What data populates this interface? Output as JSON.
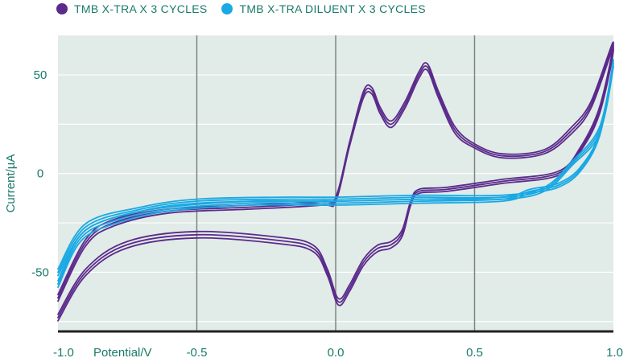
{
  "chart_data": {
    "type": "line",
    "title": "",
    "xlabel": "Potential/V",
    "ylabel": "Current/µA",
    "xlim": [
      -1.0,
      1.0
    ],
    "ylim": [
      -80,
      70
    ],
    "xticks": [
      -1.0,
      -0.5,
      0.0,
      0.5,
      1.0
    ],
    "xtick_labels": [
      "-1.0",
      "-0.5",
      "0.0",
      "0.5",
      "1.0"
    ],
    "yticks": [
      50,
      0,
      -50
    ],
    "ytick_labels": [
      "50",
      "0",
      "-50"
    ],
    "grid": true,
    "legend_position": "top-left",
    "colors": {
      "plot_bg": "#e1ebe7",
      "grid": "#ffffff",
      "vline": "#7d8582",
      "axis": "#222222",
      "text": "#1a7a6a"
    },
    "series": [
      {
        "name": "TMB X-TRA X 3 CYCLES",
        "color": "#5b2a8c",
        "cycles": 3,
        "forward": [
          [
            -1.0,
            -63
          ],
          [
            -0.9,
            -35
          ],
          [
            -0.8,
            -25
          ],
          [
            -0.6,
            -19
          ],
          [
            -0.3,
            -17
          ],
          [
            -0.05,
            -15
          ],
          [
            0.0,
            -13
          ],
          [
            0.05,
            15
          ],
          [
            0.1,
            40
          ],
          [
            0.13,
            42
          ],
          [
            0.16,
            32
          ],
          [
            0.2,
            25
          ],
          [
            0.25,
            35
          ],
          [
            0.3,
            50
          ],
          [
            0.33,
            54
          ],
          [
            0.37,
            40
          ],
          [
            0.43,
            22
          ],
          [
            0.5,
            14
          ],
          [
            0.6,
            9
          ],
          [
            0.75,
            11
          ],
          [
            0.85,
            22
          ],
          [
            0.92,
            35
          ],
          [
            1.0,
            65
          ]
        ],
        "reverse": [
          [
            1.0,
            65
          ],
          [
            0.95,
            32
          ],
          [
            0.88,
            12
          ],
          [
            0.8,
            0
          ],
          [
            0.6,
            -4
          ],
          [
            0.4,
            -8
          ],
          [
            0.3,
            -9
          ],
          [
            0.27,
            -15
          ],
          [
            0.24,
            -30
          ],
          [
            0.2,
            -36
          ],
          [
            0.15,
            -38
          ],
          [
            0.1,
            -45
          ],
          [
            0.05,
            -58
          ],
          [
            0.01,
            -65
          ],
          [
            -0.03,
            -50
          ],
          [
            -0.08,
            -38
          ],
          [
            -0.2,
            -34
          ],
          [
            -0.5,
            -31
          ],
          [
            -0.75,
            -36
          ],
          [
            -0.9,
            -50
          ],
          [
            -1.0,
            -73
          ]
        ]
      },
      {
        "name": "TMB X-TRA DILUENT X 3 CYCLES",
        "color": "#19a9e4",
        "cycles": 3,
        "forward": [
          [
            -1.0,
            -50
          ],
          [
            -0.9,
            -27
          ],
          [
            -0.7,
            -18
          ],
          [
            -0.5,
            -14
          ],
          [
            -0.2,
            -13
          ],
          [
            0.0,
            -13
          ],
          [
            0.3,
            -12
          ],
          [
            0.6,
            -12
          ],
          [
            0.75,
            -8
          ],
          [
            0.85,
            5
          ],
          [
            0.95,
            22
          ],
          [
            1.0,
            56
          ]
        ],
        "reverse": [
          [
            1.0,
            56
          ],
          [
            0.95,
            20
          ],
          [
            0.88,
            2
          ],
          [
            0.8,
            -6
          ],
          [
            0.7,
            -9
          ],
          [
            0.6,
            -13
          ],
          [
            0.3,
            -14
          ],
          [
            0.0,
            -15
          ],
          [
            -0.3,
            -15
          ],
          [
            -0.6,
            -18
          ],
          [
            -0.8,
            -24
          ],
          [
            -0.92,
            -33
          ],
          [
            -1.0,
            -56
          ]
        ]
      }
    ]
  }
}
